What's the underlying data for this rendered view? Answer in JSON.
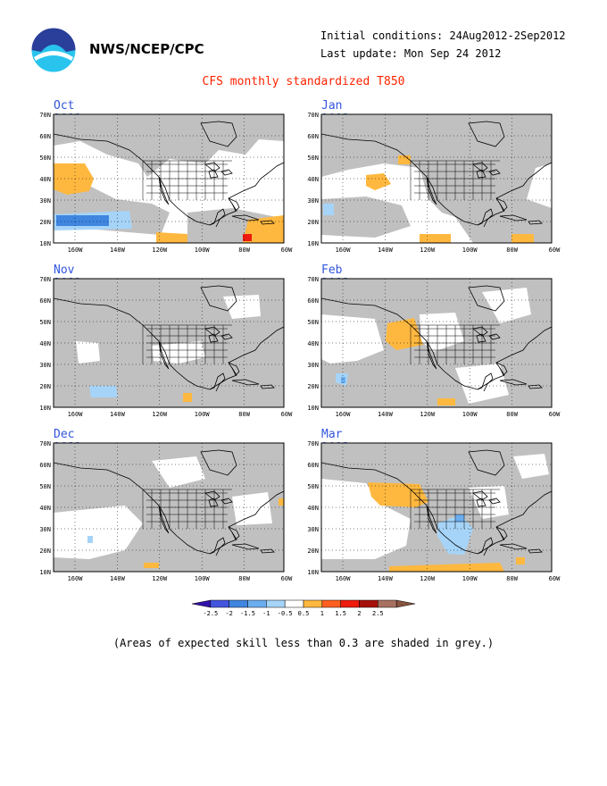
{
  "header": {
    "org": "NWS/NCEP/CPC",
    "initial_conditions": "Initial conditions: 24Aug2012-2Sep2012",
    "last_update": "Last update: Mon Sep 24 2012",
    "title": "CFS monthly standardized T850"
  },
  "axes": {
    "lat_labels": [
      "70N",
      "60N",
      "50N",
      "40N",
      "30N",
      "20N",
      "10N"
    ],
    "lon_labels": [
      "160W",
      "140W",
      "120W",
      "100W",
      "80W",
      "60W"
    ]
  },
  "panels": [
    {
      "id": "oct-2012",
      "title": "Oct 2012"
    },
    {
      "id": "jan-2013",
      "title": "Jan 2013"
    },
    {
      "id": "nov-2012",
      "title": "Nov 2012"
    },
    {
      "id": "feb-2013",
      "title": "Feb 2013"
    },
    {
      "id": "dec-2012",
      "title": "Dec 2012"
    },
    {
      "id": "mar-2013",
      "title": "Mar 2013"
    }
  ],
  "colorbar": {
    "labels": [
      "-2.5",
      "-2",
      "-1.5",
      "-1",
      "-0.5",
      "0.5",
      "1",
      "1.5",
      "2",
      "2.5"
    ],
    "colors": [
      "#3311aa",
      "#4455dd",
      "#3f86e0",
      "#6aaef0",
      "#a6d4f8",
      "#ffffff",
      "#ffb83f",
      "#ff6020",
      "#ee1b0e",
      "#a5100b",
      "#a87060",
      "#885540"
    ]
  },
  "note": "(Areas of expected skill less than 0.3 are shaded in grey.)"
}
